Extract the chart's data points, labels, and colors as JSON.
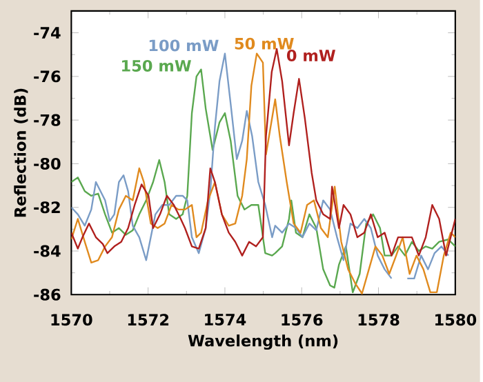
{
  "chart_data": {
    "type": "line",
    "xlabel": "Wavelength (nm)",
    "ylabel": "Reflection (dB)",
    "xlim": [
      1570,
      1580
    ],
    "ylim": [
      -86,
      -73
    ],
    "xticks": [
      1570,
      1572,
      1574,
      1576,
      1578,
      1580
    ],
    "yticks": [
      -86,
      -84,
      -82,
      -80,
      -78,
      -76,
      -74
    ],
    "legend": false,
    "grid": false,
    "marker": "none",
    "line_style": "solid",
    "series": [
      {
        "name": "150 mW",
        "color": "#5aa84f",
        "x": [
          1570.0,
          1570.17,
          1570.35,
          1570.52,
          1570.7,
          1570.88,
          1571.06,
          1571.24,
          1571.42,
          1571.6,
          1571.77,
          1571.95,
          1572.13,
          1572.29,
          1572.43,
          1572.55,
          1572.73,
          1572.9,
          1573.02,
          1573.14,
          1573.26,
          1573.38,
          1573.5,
          1573.68,
          1573.86,
          1574.0,
          1574.15,
          1574.33,
          1574.51,
          1574.69,
          1574.87,
          1575.05,
          1575.23,
          1575.31,
          1575.49,
          1575.67,
          1575.73,
          1575.85,
          1576.02,
          1576.2,
          1576.38,
          1576.56,
          1576.74,
          1576.85,
          1576.97,
          1577.15,
          1577.33,
          1577.51,
          1577.68,
          1577.86,
          1578.04,
          1578.16,
          1578.34,
          1578.51,
          1578.69,
          1578.87,
          1579.05,
          1579.23,
          1579.4,
          1579.58,
          1579.82,
          1580.0
        ],
        "values": [
          -80.84,
          -80.63,
          -81.26,
          -81.47,
          -81.37,
          -82.32,
          -83.16,
          -82.95,
          -83.26,
          -83.05,
          -82.32,
          -81.68,
          -80.84,
          -79.83,
          -80.84,
          -82.32,
          -82.53,
          -82.32,
          -81.47,
          -77.68,
          -76.0,
          -75.68,
          -77.47,
          -79.37,
          -78.1,
          -77.68,
          -78.95,
          -81.47,
          -82.1,
          -81.89,
          -81.89,
          -84.1,
          -84.21,
          -84.1,
          -83.79,
          -82.53,
          -81.68,
          -83.16,
          -83.37,
          -82.32,
          -82.95,
          -84.84,
          -85.58,
          -85.68,
          -84.63,
          -83.79,
          -85.9,
          -85.05,
          -82.74,
          -82.32,
          -82.95,
          -84.21,
          -84.21,
          -83.79,
          -84.21,
          -83.58,
          -84.0,
          -83.79,
          -83.89,
          -83.58,
          -83.47,
          -83.79
        ]
      },
      {
        "name": "100 mW",
        "color": "#7a9cc6",
        "x": [
          1570.0,
          1570.17,
          1570.35,
          1570.52,
          1570.64,
          1570.76,
          1570.88,
          1571.0,
          1571.12,
          1571.24,
          1571.36,
          1571.48,
          1571.6,
          1571.77,
          1571.95,
          1572.07,
          1572.19,
          1572.37,
          1572.55,
          1572.73,
          1572.9,
          1573.02,
          1573.14,
          1573.32,
          1573.5,
          1573.62,
          1573.74,
          1573.86,
          1574.0,
          1574.15,
          1574.31,
          1574.45,
          1574.57,
          1574.71,
          1574.87,
          1575.05,
          1575.23,
          1575.31,
          1575.49,
          1575.67,
          1575.85,
          1576.02,
          1576.2,
          1576.38,
          1576.56,
          1576.74,
          1576.92,
          1577.09,
          1577.27,
          1577.45,
          1577.63,
          1577.8,
          1577.98,
          1578.16,
          1578.34,
          1578.4,
          1578.57,
          1578.75,
          1578.93,
          1579.11,
          1579.29,
          1579.46,
          1579.64,
          1579.82
        ],
        "values": [
          -82.0,
          -82.32,
          -82.84,
          -82.1,
          -80.84,
          -81.26,
          -81.68,
          -82.63,
          -82.32,
          -80.84,
          -80.53,
          -81.26,
          -82.84,
          -83.37,
          -84.42,
          -83.37,
          -82.32,
          -81.89,
          -81.89,
          -81.47,
          -81.47,
          -81.68,
          -83.37,
          -84.1,
          -82.95,
          -81.26,
          -78.32,
          -76.21,
          -74.95,
          -77.26,
          -79.79,
          -78.95,
          -77.58,
          -78.74,
          -80.84,
          -81.89,
          -83.37,
          -82.84,
          -83.16,
          -82.74,
          -82.95,
          -83.37,
          -82.74,
          -83.05,
          -81.68,
          -82.1,
          -83.37,
          -84.42,
          -82.74,
          -82.95,
          -82.53,
          -82.95,
          -84.21,
          -84.84,
          -85.26,
          null,
          null,
          -85.26,
          -85.26,
          -84.21,
          -84.84,
          -84.1,
          -83.79,
          -84.21
        ]
      },
      {
        "name": "50 mW",
        "color": "#e08a1e",
        "x": [
          1570.0,
          1570.17,
          1570.35,
          1570.52,
          1570.7,
          1570.88,
          1571.06,
          1571.24,
          1571.42,
          1571.6,
          1571.77,
          1571.89,
          1572.07,
          1572.25,
          1572.43,
          1572.61,
          1572.79,
          1572.96,
          1573.14,
          1573.26,
          1573.38,
          1573.56,
          1573.74,
          1573.92,
          1574.1,
          1574.27,
          1574.45,
          1574.57,
          1574.69,
          1574.83,
          1574.99,
          1575.07,
          1575.31,
          1575.43,
          1575.61,
          1575.79,
          1575.97,
          1576.14,
          1576.32,
          1576.5,
          1576.68,
          1576.86,
          1577.03,
          1577.21,
          1577.39,
          1577.57,
          1577.75,
          1577.92,
          1578.1,
          1578.28,
          1578.46,
          1578.63,
          1578.81,
          1578.99,
          1579.17,
          1579.35,
          1579.52,
          1579.7,
          1579.88,
          1580.0
        ],
        "values": [
          -83.47,
          -82.53,
          -83.58,
          -84.53,
          -84.42,
          -83.79,
          -83.37,
          -82.1,
          -81.47,
          -81.68,
          -80.21,
          -80.84,
          -82.74,
          -82.95,
          -82.74,
          -81.89,
          -82.1,
          -82.1,
          -81.89,
          -83.37,
          -83.16,
          -81.68,
          -80.84,
          -82.32,
          -82.84,
          -82.74,
          -81.47,
          -79.79,
          -76.42,
          -74.95,
          -75.37,
          -79.58,
          -77.05,
          -78.74,
          -80.84,
          -82.74,
          -83.16,
          -81.89,
          -81.68,
          -82.95,
          -83.37,
          -81.05,
          -83.58,
          -84.84,
          -85.47,
          -85.95,
          -84.84,
          -83.79,
          -84.21,
          -85.05,
          -84.21,
          -83.37,
          -85.05,
          -84.21,
          -84.84,
          -85.89,
          -85.89,
          -84.21,
          -83.16,
          -83.37
        ]
      },
      {
        "name": "0 mW",
        "color": "#b0201e",
        "x": [
          1570.0,
          1570.17,
          1570.29,
          1570.46,
          1570.64,
          1570.82,
          1570.94,
          1571.12,
          1571.3,
          1571.48,
          1571.65,
          1571.83,
          1572.01,
          1572.13,
          1572.31,
          1572.49,
          1572.67,
          1572.85,
          1572.96,
          1573.14,
          1573.32,
          1573.5,
          1573.62,
          1573.74,
          1573.92,
          1574.1,
          1574.27,
          1574.45,
          1574.63,
          1574.81,
          1574.99,
          1575.07,
          1575.22,
          1575.35,
          1575.49,
          1575.67,
          1575.79,
          1575.93,
          1576.08,
          1576.26,
          1576.38,
          1576.56,
          1576.74,
          1576.79,
          1576.97,
          1577.09,
          1577.27,
          1577.45,
          1577.63,
          1577.8,
          1577.98,
          1578.16,
          1578.34,
          1578.51,
          1578.69,
          1578.87,
          1579.05,
          1579.23,
          1579.4,
          1579.58,
          1579.76,
          1579.88,
          1580.0
        ],
        "values": [
          -83.16,
          -83.89,
          -83.37,
          -82.74,
          -83.37,
          -83.68,
          -84.1,
          -83.79,
          -83.58,
          -82.95,
          -81.89,
          -80.95,
          -81.47,
          -82.95,
          -82.32,
          -81.47,
          -81.89,
          -82.53,
          -82.95,
          -83.79,
          -83.89,
          -82.95,
          -80.21,
          -80.84,
          -82.32,
          -83.16,
          -83.58,
          -84.21,
          -83.58,
          -83.79,
          -83.37,
          -78.74,
          -75.79,
          -74.74,
          -76.21,
          -79.16,
          -77.68,
          -76.11,
          -77.89,
          -80.42,
          -81.68,
          -82.32,
          -82.53,
          -81.05,
          -82.95,
          -81.89,
          -82.32,
          -83.37,
          -83.16,
          -82.32,
          -83.37,
          -83.16,
          -84.21,
          -83.37,
          -83.37,
          -83.37,
          -84.21,
          -83.37,
          -81.89,
          -82.53,
          -84.21,
          -83.37,
          -82.53
        ]
      }
    ]
  }
}
